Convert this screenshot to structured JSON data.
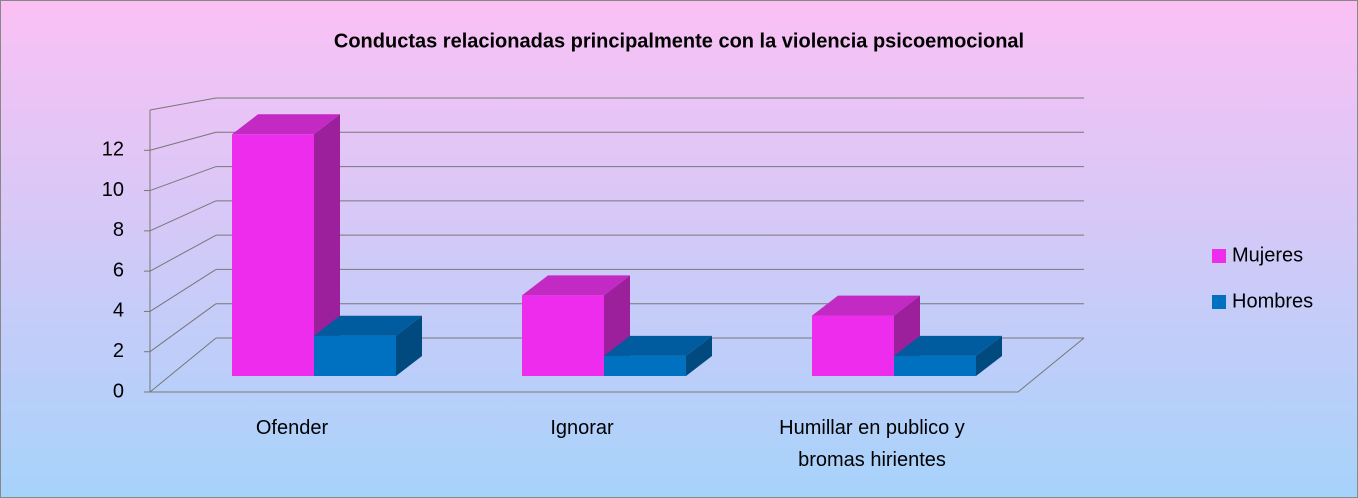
{
  "chart_data": {
    "type": "bar3d",
    "title": "Conductas relacionadas principalmente con la violencia psicoemocional",
    "categories": [
      "Ofender",
      "Ignorar",
      "Humillar en publico y bromas hirientes"
    ],
    "series": [
      {
        "name": "Mujeres",
        "color": "#ee2cee",
        "values": [
          12,
          4,
          3
        ]
      },
      {
        "name": "Hombres",
        "color": "#0070c0",
        "values": [
          2,
          1,
          1
        ]
      }
    ],
    "ylim": [
      0,
      14
    ],
    "yticks": [
      0,
      2,
      4,
      6,
      8,
      10,
      12
    ],
    "grid": true,
    "legend": "right"
  }
}
